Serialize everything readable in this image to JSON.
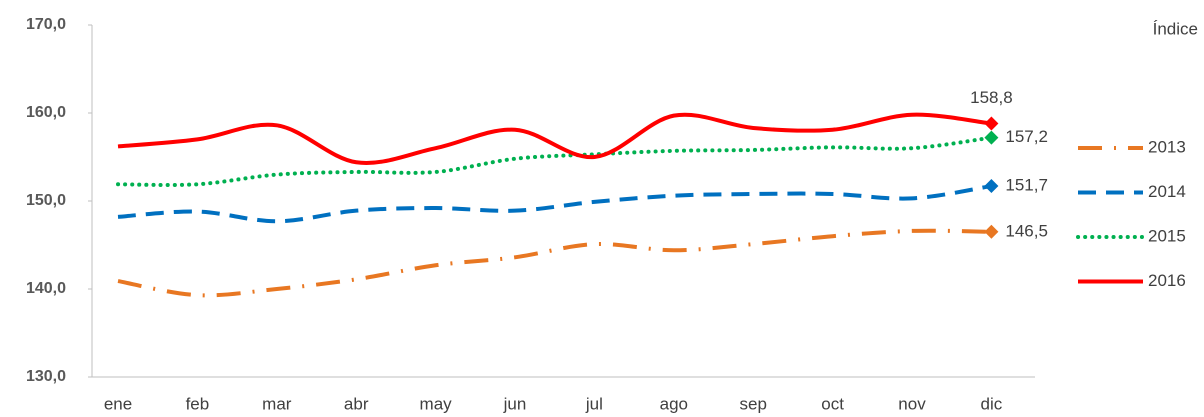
{
  "chart_data": {
    "type": "line",
    "unit_label": "Índice",
    "categories": [
      "ene",
      "feb",
      "mar",
      "abr",
      "may",
      "jun",
      "jul",
      "ago",
      "sep",
      "oct",
      "nov",
      "dic"
    ],
    "ylim": [
      130,
      170
    ],
    "yticks": [
      {
        "value": 130,
        "label": "130,0"
      },
      {
        "value": 140,
        "label": "140,0"
      },
      {
        "value": 150,
        "label": "150,0"
      },
      {
        "value": 160,
        "label": "160,0"
      },
      {
        "value": 170,
        "label": "170,0"
      }
    ],
    "grid": false,
    "legend": "right",
    "series": [
      {
        "name": "2013",
        "color": "#e87722",
        "style": "dashdot",
        "values": [
          140.9,
          139.3,
          140.0,
          141.1,
          142.7,
          143.6,
          145.1,
          144.4,
          145.1,
          146.0,
          146.6,
          146.5
        ],
        "value_labels": [
          null,
          null,
          null,
          null,
          null,
          null,
          null,
          null,
          null,
          null,
          null,
          "146,5"
        ]
      },
      {
        "name": "2014",
        "color": "#0070c0",
        "style": "dashed",
        "values": [
          148.2,
          148.8,
          147.7,
          148.9,
          149.2,
          148.9,
          149.9,
          150.6,
          150.8,
          150.8,
          150.3,
          151.7
        ],
        "value_labels": [
          null,
          null,
          null,
          null,
          null,
          null,
          null,
          null,
          null,
          null,
          null,
          "151,7"
        ]
      },
      {
        "name": "2015",
        "color": "#00b050",
        "style": "dotted",
        "values": [
          151.9,
          151.9,
          153.0,
          153.3,
          153.3,
          154.8,
          155.3,
          155.7,
          155.8,
          156.1,
          156.0,
          157.2
        ],
        "value_labels": [
          null,
          null,
          null,
          null,
          null,
          null,
          null,
          null,
          null,
          null,
          null,
          "157,2"
        ]
      },
      {
        "name": "2016",
        "color": "#ff0000",
        "style": "solid",
        "values": [
          156.2,
          157.0,
          158.6,
          154.4,
          156.0,
          158.1,
          155.0,
          159.7,
          158.3,
          158.1,
          159.8,
          158.8
        ],
        "value_labels": [
          null,
          null,
          null,
          null,
          null,
          null,
          null,
          null,
          null,
          null,
          null,
          "158,8"
        ]
      }
    ]
  }
}
